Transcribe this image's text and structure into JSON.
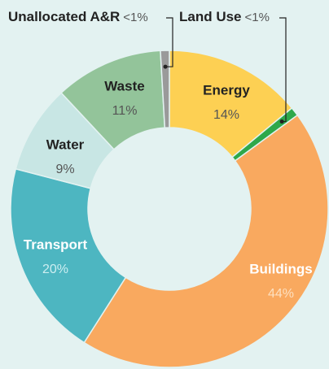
{
  "chart_data": {
    "type": "donut",
    "categories": [
      "Energy",
      "Land Use",
      "Buildings",
      "Transport",
      "Water",
      "Waste",
      "Unallocated A&R"
    ],
    "values": [
      14,
      0.9,
      44,
      20,
      9,
      11,
      0.9
    ],
    "value_labels": [
      "14%",
      "<1%",
      "44%",
      "20%",
      "9%",
      "11%",
      "<1%"
    ],
    "colors": [
      "#fdd053",
      "#2ea84a",
      "#f9a95f",
      "#4db6c1",
      "#c8e6e4",
      "#93c49a",
      "#9a9a9a"
    ]
  }
}
